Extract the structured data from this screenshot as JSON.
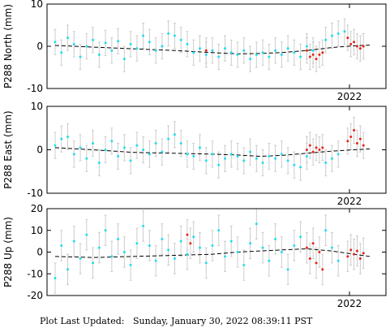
{
  "footer": {
    "label": "Plot Last Updated:",
    "timestamp": "Sunday, January 30, 2022 08:39:11 PST"
  },
  "colors": {
    "historic_points": "#22ddee",
    "recent_points": "#e8231a",
    "error_bars": "#cccccc",
    "trend": "#000000"
  },
  "chart_data": [
    {
      "type": "scatter",
      "ylabel": "P288 North (mm)",
      "xlabel": "",
      "x_tick_labels": [
        "2022"
      ],
      "ylim": [
        -10,
        10
      ],
      "yticks": [
        -10,
        0,
        10
      ],
      "grid": false,
      "error_bar_mm": 3,
      "trend_x": [
        0.0,
        0.12,
        0.25,
        0.38,
        0.5,
        0.58,
        0.65,
        0.72,
        0.8,
        0.88,
        0.95,
        1.0
      ],
      "trend_y": [
        0.2,
        -0.2,
        -0.6,
        -1.0,
        -1.5,
        -1.8,
        -1.7,
        -1.5,
        -1.0,
        -0.3,
        0.1,
        0.3
      ],
      "series": [
        {
          "color": "historic",
          "x": [
            0.0,
            0.02,
            0.04,
            0.06,
            0.08,
            0.1,
            0.12,
            0.14,
            0.16,
            0.18,
            0.2,
            0.22,
            0.24,
            0.26,
            0.28,
            0.3,
            0.32,
            0.34,
            0.36,
            0.38,
            0.4,
            0.42,
            0.44,
            0.46,
            0.48,
            0.5,
            0.52,
            0.54,
            0.56,
            0.58,
            0.6,
            0.62,
            0.64,
            0.66,
            0.68,
            0.7,
            0.72,
            0.74,
            0.76,
            0.78,
            0.8,
            0.82,
            0.86,
            0.88,
            0.9,
            0.92
          ],
          "y": [
            1.0,
            -1.5,
            2.0,
            0.5,
            -2.5,
            0.0,
            1.5,
            -2.0,
            0.8,
            -1.0,
            1.2,
            -3.0,
            0.5,
            -0.5,
            2.5,
            1.0,
            -1.0,
            0.0,
            3.0,
            2.5,
            1.5,
            0.5,
            -1.5,
            -0.5,
            -2.0,
            -1.0,
            -2.5,
            -0.5,
            -1.5,
            -2.0,
            -1.0,
            -3.0,
            -2.0,
            -1.5,
            -2.5,
            -1.0,
            -2.0,
            -0.5,
            -1.5,
            -2.5,
            0.0,
            -1.0,
            1.5,
            2.5,
            3.0,
            3.5
          ]
        },
        {
          "color": "recent",
          "x": [
            0.48,
            0.8,
            0.81,
            0.82,
            0.83,
            0.84,
            0.85,
            0.93,
            0.94,
            0.95,
            0.96,
            0.97,
            0.98
          ],
          "y": [
            -1.0,
            -1.0,
            -2.5,
            -2.0,
            -3.0,
            -2.0,
            -1.5,
            2.0,
            0.5,
            1.0,
            0.0,
            -0.5,
            0.0
          ]
        }
      ]
    },
    {
      "type": "scatter",
      "ylabel": "P288 East (mm)",
      "xlabel": "",
      "x_tick_labels": [
        "2022"
      ],
      "ylim": [
        -10,
        10
      ],
      "yticks": [
        -10,
        0,
        10
      ],
      "grid": false,
      "error_bar_mm": 3,
      "trend_x": [
        0.0,
        0.12,
        0.25,
        0.38,
        0.5,
        0.58,
        0.65,
        0.72,
        0.8,
        0.88,
        0.95,
        1.0
      ],
      "trend_y": [
        0.5,
        0.0,
        -0.6,
        -0.8,
        -1.0,
        -1.2,
        -1.5,
        -1.3,
        -0.8,
        -0.3,
        0.0,
        0.2
      ],
      "series": [
        {
          "color": "historic",
          "x": [
            0.0,
            0.02,
            0.04,
            0.06,
            0.08,
            0.1,
            0.12,
            0.14,
            0.16,
            0.18,
            0.2,
            0.22,
            0.24,
            0.26,
            0.28,
            0.3,
            0.32,
            0.34,
            0.36,
            0.38,
            0.4,
            0.42,
            0.44,
            0.46,
            0.48,
            0.5,
            0.52,
            0.54,
            0.56,
            0.58,
            0.6,
            0.62,
            0.64,
            0.66,
            0.68,
            0.7,
            0.72,
            0.74,
            0.76,
            0.78,
            0.8,
            0.86,
            0.88,
            0.9
          ],
          "y": [
            1.0,
            2.5,
            3.0,
            -1.0,
            0.5,
            -2.0,
            1.5,
            -3.0,
            0.0,
            2.0,
            -1.5,
            0.5,
            -2.5,
            1.0,
            0.0,
            -1.0,
            1.5,
            -0.5,
            2.5,
            3.5,
            1.5,
            -1.0,
            -1.5,
            0.5,
            -2.5,
            -1.0,
            -3.5,
            -2.0,
            -1.0,
            -1.5,
            -2.5,
            -0.5,
            -2.0,
            -3.0,
            -1.5,
            -2.0,
            -1.0,
            -2.5,
            -3.5,
            -4.0,
            -1.5,
            -3.0,
            -2.0,
            -1.0
          ]
        },
        {
          "color": "recent",
          "x": [
            0.8,
            0.81,
            0.82,
            0.83,
            0.84,
            0.85,
            0.93,
            0.94,
            0.95,
            0.96,
            0.97,
            0.98
          ],
          "y": [
            0.0,
            1.0,
            -0.5,
            0.5,
            0.0,
            0.5,
            2.0,
            3.0,
            4.5,
            1.5,
            2.5,
            1.0
          ]
        }
      ]
    },
    {
      "type": "scatter",
      "ylabel": "P288 Up (mm)",
      "xlabel": "",
      "x_tick_labels": [
        "2022"
      ],
      "ylim": [
        -20,
        20
      ],
      "yticks": [
        -20,
        -10,
        0,
        10,
        20
      ],
      "grid": false,
      "error_bar_mm": 7,
      "trend_x": [
        0.0,
        0.12,
        0.25,
        0.38,
        0.5,
        0.58,
        0.65,
        0.72,
        0.8,
        0.88,
        0.95,
        1.0
      ],
      "trend_y": [
        -2.0,
        -2.5,
        -2.0,
        -1.5,
        -1.0,
        0.0,
        0.5,
        1.0,
        1.5,
        0.5,
        -1.0,
        -2.0
      ],
      "series": [
        {
          "color": "historic",
          "x": [
            0.0,
            0.02,
            0.04,
            0.06,
            0.08,
            0.1,
            0.12,
            0.14,
            0.16,
            0.18,
            0.2,
            0.22,
            0.24,
            0.26,
            0.28,
            0.3,
            0.32,
            0.34,
            0.36,
            0.38,
            0.4,
            0.42,
            0.44,
            0.46,
            0.48,
            0.5,
            0.52,
            0.54,
            0.56,
            0.58,
            0.6,
            0.62,
            0.64,
            0.66,
            0.68,
            0.7,
            0.72,
            0.74,
            0.76,
            0.78,
            0.86,
            0.88,
            0.9
          ],
          "y": [
            -12.0,
            3.0,
            -8.0,
            5.0,
            -3.0,
            8.0,
            -5.0,
            2.0,
            10.0,
            -2.0,
            6.0,
            0.0,
            -6.0,
            4.0,
            12.0,
            3.0,
            -4.0,
            6.0,
            1.0,
            -3.0,
            5.0,
            -1.0,
            7.0,
            2.0,
            -5.0,
            3.0,
            10.0,
            -2.0,
            5.0,
            0.0,
            -6.0,
            4.0,
            13.0,
            2.0,
            -4.0,
            6.0,
            0.0,
            -8.0,
            3.0,
            7.0,
            10.0,
            2.0,
            -4.0
          ]
        },
        {
          "color": "recent",
          "x": [
            0.42,
            0.43,
            0.8,
            0.81,
            0.82,
            0.83,
            0.84,
            0.85,
            0.93,
            0.94,
            0.95,
            0.96,
            0.97,
            0.98
          ],
          "y": [
            8.0,
            4.0,
            2.0,
            -3.0,
            4.0,
            -5.0,
            0.0,
            -8.0,
            -2.0,
            1.0,
            -1.0,
            0.5,
            -3.0,
            -0.5
          ]
        }
      ]
    }
  ]
}
